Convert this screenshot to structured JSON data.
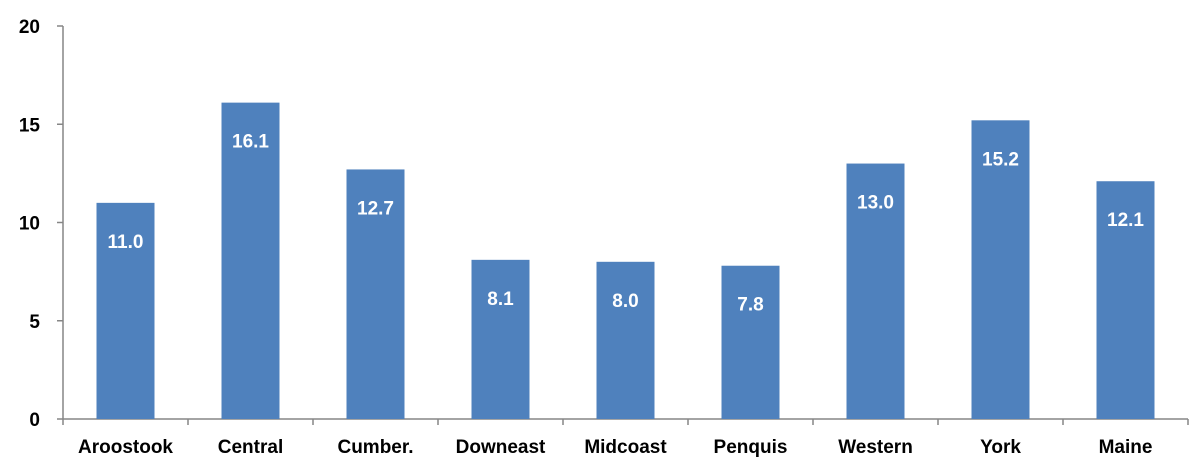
{
  "chart_data": {
    "type": "bar",
    "categories": [
      "Aroostook",
      "Central",
      "Cumber.",
      "Downeast",
      "Midcoast",
      "Penquis",
      "Western",
      "York",
      "Maine"
    ],
    "values": [
      11.0,
      16.1,
      12.7,
      8.1,
      8.0,
      7.8,
      13.0,
      15.2,
      12.1
    ],
    "data_labels": [
      "11.0",
      "16.1",
      "12.7",
      "8.1",
      "8.0",
      "7.8",
      "13.0",
      "15.2",
      "12.1"
    ],
    "y_ticks": [
      "0",
      "5",
      "10",
      "15",
      "20"
    ],
    "ylim": [
      0,
      20
    ],
    "grid": false,
    "title": "",
    "xlabel": "",
    "ylabel": "",
    "colors": {
      "bar": "#4f81bd",
      "axis": "#868686",
      "label_inside": "#ffffff",
      "tick_text": "#000000"
    }
  }
}
